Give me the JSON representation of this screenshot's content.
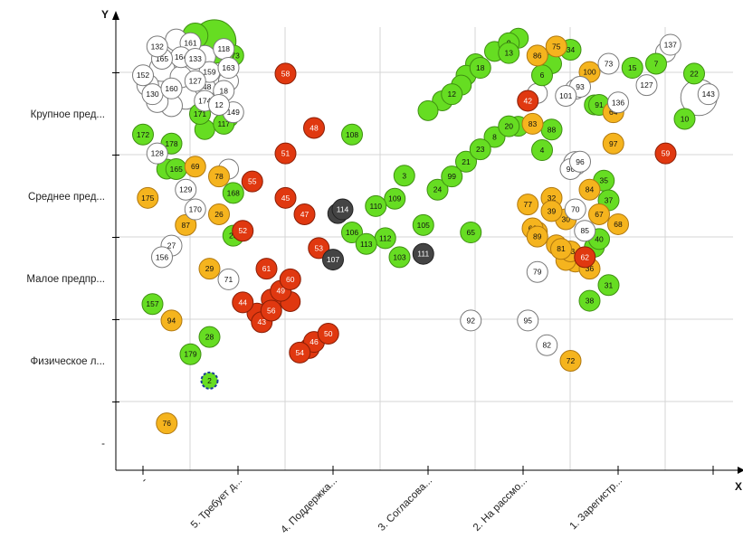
{
  "chart_data": {
    "type": "scatter",
    "xlabel": "X",
    "ylabel": "Y",
    "y_categories": [
      "-",
      "Физическое л...",
      "Малое предпр...",
      "Среднее пред...",
      "Крупное пред..."
    ],
    "x_categories": [
      "-",
      "5. Требует д...",
      "4. Поддержка...",
      "3. Согласова...",
      "2. На рассмо...",
      "1. Зарегистр..."
    ],
    "colors": {
      "green": "#66dd22",
      "orange": "#f5b41e",
      "red": "#e03810",
      "white": "#ffffff",
      "gray": "#444444"
    },
    "points": [
      {
        "id": "3",
        "x": 2.75,
        "y": 3.25,
        "c": "green"
      },
      {
        "id": "6",
        "x": 4.2,
        "y": 4.47,
        "c": "green"
      },
      {
        "id": "7",
        "x": 5.4,
        "y": 4.61,
        "c": "green"
      },
      {
        "id": "8",
        "x": 3.7,
        "y": 3.72,
        "c": "green"
      },
      {
        "id": "9",
        "x": 3.85,
        "y": 4.86,
        "c": "green"
      },
      {
        "id": "10",
        "x": 5.7,
        "y": 3.94,
        "c": "green"
      },
      {
        "id": "12",
        "x": 3.25,
        "y": 4.24,
        "c": "green"
      },
      {
        "id": "13",
        "x": 3.85,
        "y": 4.74,
        "c": "green"
      },
      {
        "id": "15",
        "x": 5.15,
        "y": 4.56,
        "c": "green"
      },
      {
        "id": "18",
        "x": 3.55,
        "y": 4.56,
        "c": "green"
      },
      {
        "id": "20",
        "x": 3.85,
        "y": 3.85,
        "c": "green"
      },
      {
        "id": "21",
        "x": 3.4,
        "y": 3.42,
        "c": "green"
      },
      {
        "id": "22",
        "x": 5.8,
        "y": 4.49,
        "c": "green"
      },
      {
        "id": "23",
        "x": 3.55,
        "y": 3.57,
        "c": "green"
      },
      {
        "id": "24",
        "x": 3.1,
        "y": 3.08,
        "c": "green"
      },
      {
        "id": "25",
        "x": 0.95,
        "y": 2.52,
        "c": "green"
      },
      {
        "id": "28",
        "x": 0.7,
        "y": 1.29,
        "c": "green"
      },
      {
        "id": "31",
        "x": 4.9,
        "y": 1.92,
        "c": "green"
      },
      {
        "id": "34",
        "x": 4.5,
        "y": 4.78,
        "c": "green"
      },
      {
        "id": "35",
        "x": 4.85,
        "y": 3.19,
        "c": "green"
      },
      {
        "id": "37",
        "x": 4.9,
        "y": 2.95,
        "c": "green"
      },
      {
        "id": "38",
        "x": 4.7,
        "y": 1.73,
        "c": "green"
      },
      {
        "id": "40",
        "x": 4.8,
        "y": 2.48,
        "c": "green"
      },
      {
        "id": "65",
        "x": 3.45,
        "y": 2.56,
        "c": "green"
      },
      {
        "id": "88",
        "x": 4.3,
        "y": 3.81,
        "c": "green"
      },
      {
        "id": "91",
        "x": 4.8,
        "y": 4.11,
        "c": "green"
      },
      {
        "id": "99",
        "x": 3.25,
        "y": 3.24,
        "c": "green"
      },
      {
        "id": "103",
        "x": 2.7,
        "y": 2.26,
        "c": "green"
      },
      {
        "id": "105",
        "x": 2.95,
        "y": 2.65,
        "c": "green"
      },
      {
        "id": "106",
        "x": 2.2,
        "y": 2.56,
        "c": "green"
      },
      {
        "id": "108",
        "x": 2.2,
        "y": 3.75,
        "c": "green"
      },
      {
        "id": "109",
        "x": 2.65,
        "y": 2.97,
        "c": "green"
      },
      {
        "id": "110",
        "x": 2.45,
        "y": 2.88,
        "c": "green"
      },
      {
        "id": "112",
        "x": 2.55,
        "y": 2.49,
        "c": "green"
      },
      {
        "id": "113",
        "x": 2.35,
        "y": 2.42,
        "c": "green"
      },
      {
        "id": "117",
        "x": 0.85,
        "y": 3.88,
        "c": "green"
      },
      {
        "id": "165",
        "x": 0.35,
        "y": 3.33,
        "c": "green"
      },
      {
        "id": "168",
        "x": 0.95,
        "y": 3.04,
        "c": "green"
      },
      {
        "id": "171",
        "x": 0.6,
        "y": 4.0,
        "c": "green"
      },
      {
        "id": "172",
        "x": 0.0,
        "y": 3.75,
        "c": "green"
      },
      {
        "id": "173",
        "x": 0.95,
        "y": 4.71,
        "c": "green"
      },
      {
        "id": "178",
        "x": 0.3,
        "y": 3.64,
        "c": "green"
      },
      {
        "id": "179",
        "x": 0.5,
        "y": 1.08,
        "c": "green"
      },
      {
        "id": "157",
        "x": 0.1,
        "y": 1.69,
        "c": "green"
      },
      {
        "id": "2",
        "x": 0.7,
        "y": 0.76,
        "c": "green"
      },
      {
        "id": "4",
        "x": 4.2,
        "y": 3.56,
        "c": "green"
      },
      {
        "id": "26",
        "x": 0.8,
        "y": 2.78,
        "c": "orange"
      },
      {
        "id": "29",
        "x": 0.7,
        "y": 2.12,
        "c": "orange"
      },
      {
        "id": "30",
        "x": 4.45,
        "y": 2.72,
        "c": "orange"
      },
      {
        "id": "32",
        "x": 4.3,
        "y": 2.98,
        "c": "orange"
      },
      {
        "id": "33",
        "x": 4.5,
        "y": 2.33,
        "c": "orange"
      },
      {
        "id": "36",
        "x": 4.7,
        "y": 2.12,
        "c": "orange"
      },
      {
        "id": "39",
        "x": 4.3,
        "y": 2.82,
        "c": "orange"
      },
      {
        "id": "64",
        "x": 4.95,
        "y": 4.02,
        "c": "orange"
      },
      {
        "id": "66",
        "x": 4.1,
        "y": 2.61,
        "c": "orange"
      },
      {
        "id": "67",
        "x": 4.8,
        "y": 2.78,
        "c": "orange"
      },
      {
        "id": "68",
        "x": 5.0,
        "y": 2.66,
        "c": "orange"
      },
      {
        "id": "69",
        "x": 0.55,
        "y": 3.36,
        "c": "orange"
      },
      {
        "id": "72",
        "x": 4.5,
        "y": 1.0,
        "c": "orange"
      },
      {
        "id": "75",
        "x": 4.35,
        "y": 4.82,
        "c": "orange"
      },
      {
        "id": "76",
        "x": 0.25,
        "y": 0.24,
        "c": "orange"
      },
      {
        "id": "77",
        "x": 4.05,
        "y": 2.9,
        "c": "orange"
      },
      {
        "id": "78",
        "x": 0.8,
        "y": 3.24,
        "c": "orange"
      },
      {
        "id": "81",
        "x": 4.4,
        "y": 2.36,
        "c": "orange"
      },
      {
        "id": "83",
        "x": 4.1,
        "y": 3.88,
        "c": "orange"
      },
      {
        "id": "84",
        "x": 4.7,
        "y": 3.08,
        "c": "orange"
      },
      {
        "id": "86",
        "x": 4.15,
        "y": 4.71,
        "c": "orange"
      },
      {
        "id": "87",
        "x": 0.45,
        "y": 2.65,
        "c": "orange"
      },
      {
        "id": "94",
        "x": 0.3,
        "y": 1.49,
        "c": "orange"
      },
      {
        "id": "97",
        "x": 4.95,
        "y": 3.64,
        "c": "orange"
      },
      {
        "id": "100",
        "x": 4.7,
        "y": 4.51,
        "c": "orange"
      },
      {
        "id": "175",
        "x": 0.05,
        "y": 2.98,
        "c": "orange"
      },
      {
        "id": "89",
        "x": 4.15,
        "y": 2.51,
        "c": "orange"
      },
      {
        "id": "42",
        "x": 4.05,
        "y": 4.16,
        "c": "red"
      },
      {
        "id": "43",
        "x": 1.25,
        "y": 1.47,
        "c": "red"
      },
      {
        "id": "44",
        "x": 1.05,
        "y": 1.71,
        "c": "red"
      },
      {
        "id": "45",
        "x": 1.5,
        "y": 2.98,
        "c": "red"
      },
      {
        "id": "46",
        "x": 1.8,
        "y": 1.23,
        "c": "red"
      },
      {
        "id": "47",
        "x": 1.7,
        "y": 2.78,
        "c": "red"
      },
      {
        "id": "48",
        "x": 1.8,
        "y": 3.83,
        "c": "red"
      },
      {
        "id": "49",
        "x": 1.45,
        "y": 1.85,
        "c": "red"
      },
      {
        "id": "50",
        "x": 1.95,
        "y": 1.33,
        "c": "red"
      },
      {
        "id": "51",
        "x": 1.5,
        "y": 3.52,
        "c": "red"
      },
      {
        "id": "52",
        "x": 1.05,
        "y": 2.58,
        "c": "red"
      },
      {
        "id": "53",
        "x": 1.85,
        "y": 2.37,
        "c": "red"
      },
      {
        "id": "54",
        "x": 1.65,
        "y": 1.1,
        "c": "red"
      },
      {
        "id": "55",
        "x": 1.15,
        "y": 3.18,
        "c": "red"
      },
      {
        "id": "56",
        "x": 1.35,
        "y": 1.61,
        "c": "red"
      },
      {
        "id": "58",
        "x": 1.5,
        "y": 4.49,
        "c": "red"
      },
      {
        "id": "59",
        "x": 5.5,
        "y": 3.52,
        "c": "red"
      },
      {
        "id": "60",
        "x": 1.55,
        "y": 1.99,
        "c": "red"
      },
      {
        "id": "61",
        "x": 1.3,
        "y": 2.12,
        "c": "red"
      },
      {
        "id": "62",
        "x": 4.65,
        "y": 2.26,
        "c": "red"
      },
      {
        "id": "107",
        "x": 2.0,
        "y": 2.23,
        "c": "gray"
      },
      {
        "id": "111",
        "x": 2.95,
        "y": 2.3,
        "c": "gray"
      },
      {
        "id": "114",
        "x": 2.1,
        "y": 2.84,
        "c": "gray"
      },
      {
        "id": "27",
        "x": 0.3,
        "y": 2.4,
        "c": "white"
      },
      {
        "id": "70",
        "x": 4.55,
        "y": 2.84,
        "c": "white"
      },
      {
        "id": "71",
        "x": 0.9,
        "y": 1.99,
        "c": "white"
      },
      {
        "id": "73",
        "x": 4.9,
        "y": 4.61,
        "c": "white"
      },
      {
        "id": "79",
        "x": 4.15,
        "y": 2.08,
        "c": "white"
      },
      {
        "id": "82",
        "x": 4.25,
        "y": 1.19,
        "c": "white"
      },
      {
        "id": "85",
        "x": 4.65,
        "y": 2.58,
        "c": "white"
      },
      {
        "id": "90",
        "x": 4.5,
        "y": 3.33,
        "c": "white"
      },
      {
        "id": "92",
        "x": 3.45,
        "y": 1.49,
        "c": "white"
      },
      {
        "id": "93",
        "x": 4.6,
        "y": 4.33,
        "c": "white"
      },
      {
        "id": "95",
        "x": 4.05,
        "y": 1.49,
        "c": "white"
      },
      {
        "id": "96",
        "x": 4.6,
        "y": 3.42,
        "c": "white"
      },
      {
        "id": "101",
        "x": 4.45,
        "y": 4.22,
        "c": "white"
      },
      {
        "id": "127",
        "x": 5.3,
        "y": 4.35,
        "c": "white"
      },
      {
        "id": "128",
        "x": 0.15,
        "y": 3.52,
        "c": "white"
      },
      {
        "id": "129",
        "x": 0.45,
        "y": 3.08,
        "c": "white"
      },
      {
        "id": "130",
        "x": 0.1,
        "y": 4.24,
        "c": "white"
      },
      {
        "id": "136",
        "x": 5.0,
        "y": 4.14,
        "c": "white"
      },
      {
        "id": "137",
        "x": 5.55,
        "y": 4.84,
        "c": "white"
      },
      {
        "id": "143",
        "x": 5.95,
        "y": 4.24,
        "c": "white"
      },
      {
        "id": "148",
        "x": 0.65,
        "y": 4.33,
        "c": "white"
      },
      {
        "id": "149",
        "x": 0.95,
        "y": 4.02,
        "c": "white"
      },
      {
        "id": "152",
        "x": 0.0,
        "y": 4.47,
        "c": "white"
      },
      {
        "id": "156",
        "x": 0.2,
        "y": 2.26,
        "c": "white"
      },
      {
        "id": "159",
        "x": 0.7,
        "y": 4.51,
        "c": "white"
      },
      {
        "id": "160",
        "x": 0.3,
        "y": 4.31,
        "c": "white"
      },
      {
        "id": "161",
        "x": 0.5,
        "y": 4.86,
        "c": "white"
      },
      {
        "id": "164",
        "x": 0.4,
        "y": 4.69,
        "c": "white"
      },
      {
        "id": "165",
        "x": 0.2,
        "y": 4.67,
        "c": "white"
      },
      {
        "id": "170",
        "x": 0.55,
        "y": 2.84,
        "c": "white"
      },
      {
        "id": "174",
        "x": 0.65,
        "y": 4.16,
        "c": "white"
      },
      {
        "id": "118",
        "x": 0.85,
        "y": 4.79,
        "c": "white"
      },
      {
        "id": "127",
        "x": 0.55,
        "y": 4.4,
        "c": "white"
      },
      {
        "id": "163",
        "x": 0.9,
        "y": 4.56,
        "c": "white"
      },
      {
        "id": "133",
        "x": 0.55,
        "y": 4.67,
        "c": "white"
      },
      {
        "id": "18",
        "x": 0.85,
        "y": 4.28,
        "c": "white"
      },
      {
        "id": "132",
        "x": 0.15,
        "y": 4.82,
        "c": "white"
      },
      {
        "id": "12",
        "x": 0.8,
        "y": 4.11,
        "c": "white"
      }
    ],
    "unlabeled_points": [
      {
        "x": 0.75,
        "y": 4.88,
        "c": "green",
        "r": 24
      },
      {
        "x": 0.55,
        "y": 4.95,
        "c": "green",
        "r": 14
      },
      {
        "x": 3.95,
        "y": 4.92,
        "c": "green",
        "r": 11
      },
      {
        "x": 3.7,
        "y": 4.76,
        "c": "green",
        "r": 11
      },
      {
        "x": 3.5,
        "y": 4.61,
        "c": "green",
        "r": 11
      },
      {
        "x": 3.4,
        "y": 4.47,
        "c": "green",
        "r": 11
      },
      {
        "x": 3.35,
        "y": 4.35,
        "c": "green",
        "r": 11
      },
      {
        "x": 3.15,
        "y": 4.16,
        "c": "green",
        "r": 11
      },
      {
        "x": 3.0,
        "y": 4.04,
        "c": "green",
        "r": 11
      },
      {
        "x": 4.3,
        "y": 4.61,
        "c": "green",
        "r": 11
      },
      {
        "x": 3.95,
        "y": 3.85,
        "c": "green",
        "r": 11
      },
      {
        "x": 4.75,
        "y": 4.11,
        "c": "green",
        "r": 11
      },
      {
        "x": 4.75,
        "y": 2.38,
        "c": "green",
        "r": 11
      },
      {
        "x": 0.65,
        "y": 3.81,
        "c": "green",
        "r": 11
      },
      {
        "x": 0.25,
        "y": 3.33,
        "c": "green",
        "r": 11
      },
      {
        "x": 0.9,
        "y": 3.96,
        "c": "green",
        "r": 11
      },
      {
        "x": 2.05,
        "y": 2.79,
        "c": "gray",
        "r": 11
      },
      {
        "x": 4.15,
        "y": 2.57,
        "c": "orange",
        "r": 11
      },
      {
        "x": 4.55,
        "y": 2.2,
        "c": "orange",
        "r": 11
      },
      {
        "x": 4.35,
        "y": 2.41,
        "c": "orange",
        "r": 11
      },
      {
        "x": 4.45,
        "y": 2.22,
        "c": "orange",
        "r": 11
      },
      {
        "x": 1.2,
        "y": 1.58,
        "c": "red",
        "r": 11
      },
      {
        "x": 1.55,
        "y": 1.72,
        "c": "red",
        "r": 11
      },
      {
        "x": 1.35,
        "y": 1.75,
        "c": "red",
        "r": 11
      },
      {
        "x": 1.75,
        "y": 1.15,
        "c": "red",
        "r": 11
      },
      {
        "x": 0.9,
        "y": 3.33,
        "c": "white",
        "r": 11
      },
      {
        "x": 0.35,
        "y": 4.9,
        "c": "white",
        "r": 12
      },
      {
        "x": 0.2,
        "y": 4.55,
        "c": "white",
        "r": 14
      },
      {
        "x": 0.45,
        "y": 4.2,
        "c": "white",
        "r": 13
      },
      {
        "x": 0.3,
        "y": 4.1,
        "c": "white",
        "r": 12
      },
      {
        "x": 0.05,
        "y": 4.35,
        "c": "white",
        "r": 12
      },
      {
        "x": 0.5,
        "y": 4.6,
        "c": "white",
        "r": 12
      },
      {
        "x": 0.15,
        "y": 4.15,
        "c": "white",
        "r": 12
      },
      {
        "x": 0.65,
        "y": 4.7,
        "c": "white",
        "r": 12
      },
      {
        "x": 0.4,
        "y": 4.45,
        "c": "white",
        "r": 12
      },
      {
        "x": 0.9,
        "y": 4.4,
        "c": "white",
        "r": 11
      },
      {
        "x": 5.85,
        "y": 4.2,
        "c": "white",
        "r": 20
      },
      {
        "x": 5.5,
        "y": 4.75,
        "c": "white",
        "r": 11
      },
      {
        "x": 4.55,
        "y": 3.4,
        "c": "white",
        "r": 13
      },
      {
        "x": 4.55,
        "y": 4.3,
        "c": "white",
        "r": 11
      },
      {
        "x": 4.15,
        "y": 4.25,
        "c": "white",
        "r": 11
      }
    ]
  }
}
